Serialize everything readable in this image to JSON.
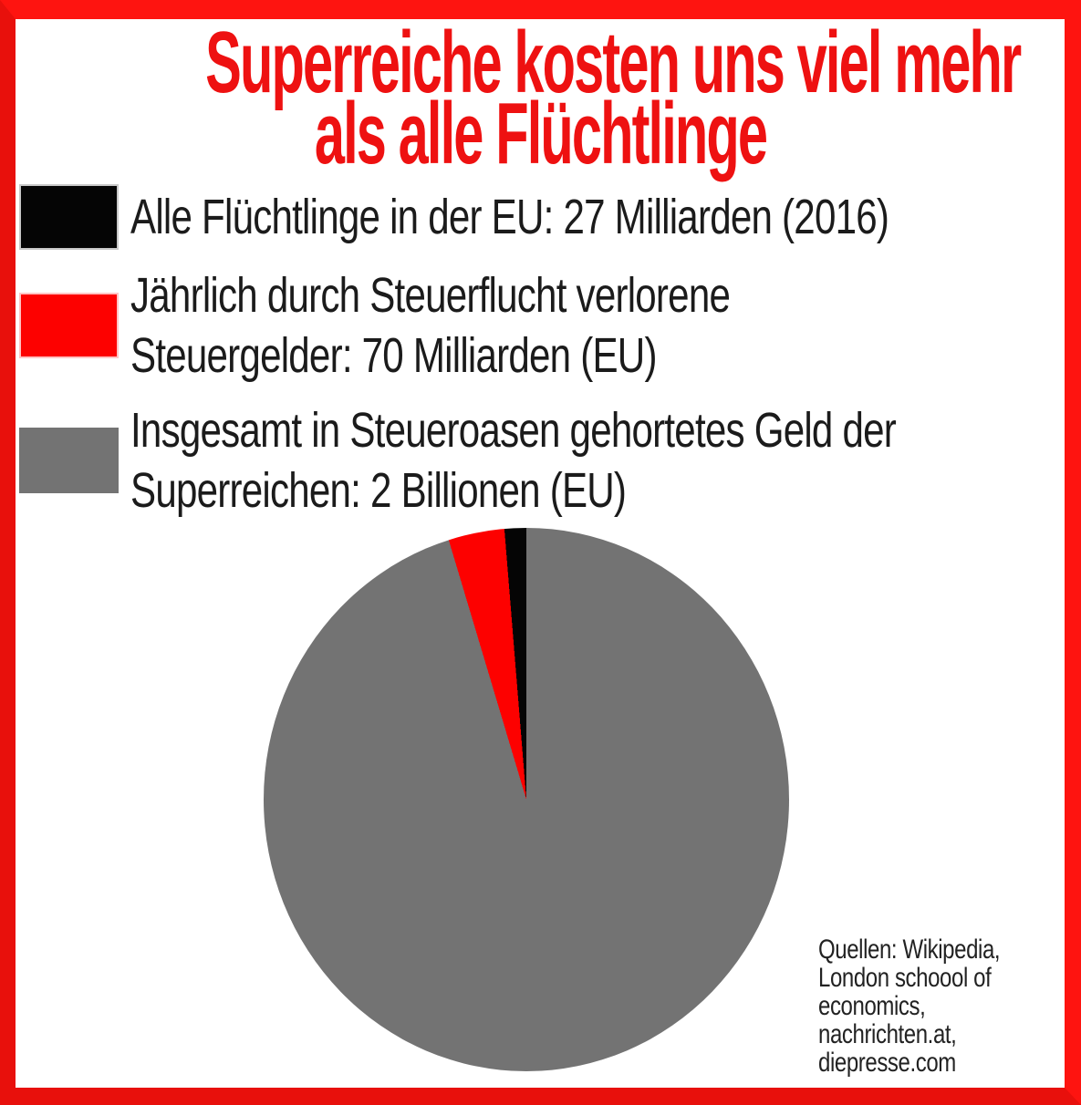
{
  "title": {
    "line1": "Superreiche kosten uns viel mehr",
    "line2": "als alle Flüchtlinge",
    "color": "#ee1111"
  },
  "legend": {
    "items": [
      {
        "lines": [
          "Alle Flüchtlinge in der EU: 27 Milliarden (2016)"
        ],
        "swatch_color": "#050505",
        "swatch_edge": "#c9c9c9"
      },
      {
        "lines": [
          "Jährlich durch Steuerflucht verlorene",
          "Steuergelder: 70 Milliarden (EU)"
        ],
        "swatch_color": "#fd0100",
        "swatch_edge": "#ffc4c4"
      },
      {
        "lines": [
          "Insgesamt in Steueroasen gehortetes Geld der",
          "Superreichen: 2 Billionen (EU)"
        ],
        "swatch_color": "#737373",
        "swatch_edge": "#737373"
      }
    ]
  },
  "chart_data": {
    "type": "pie",
    "title": "Superreiche kosten uns viel mehr als alle Flüchtlinge",
    "slices": [
      {
        "label": "Alle Flüchtlinge in der EU (2016)",
        "value": 27,
        "unit": "Milliarden EUR",
        "percent": 1.3,
        "color": "#050505"
      },
      {
        "label": "Jährlich durch Steuerflucht verlorene Steuergelder (EU)",
        "value": 70,
        "unit": "Milliarden EUR",
        "percent": 3.3,
        "color": "#fd0100"
      },
      {
        "label": "Insgesamt in Steueroasen gehortetes Geld der Superreichen (EU)",
        "value": 2000,
        "unit": "Milliarden EUR",
        "percent": 95.4,
        "color": "#737373"
      }
    ],
    "start_angle_deg": 90,
    "direction": "counterclockwise",
    "legend_position": "top-left"
  },
  "source": {
    "lines": [
      "Quellen: Wikipedia,",
      "London schoool of",
      "economics,",
      "nachrichten.at,",
      "diepresse.com"
    ]
  },
  "frame": {
    "bright": "#fe1410",
    "dark": "#e8100c"
  },
  "colors": {
    "background": "#ffffff",
    "legend_text": "#1b1b1b",
    "source_text": "#222222"
  }
}
